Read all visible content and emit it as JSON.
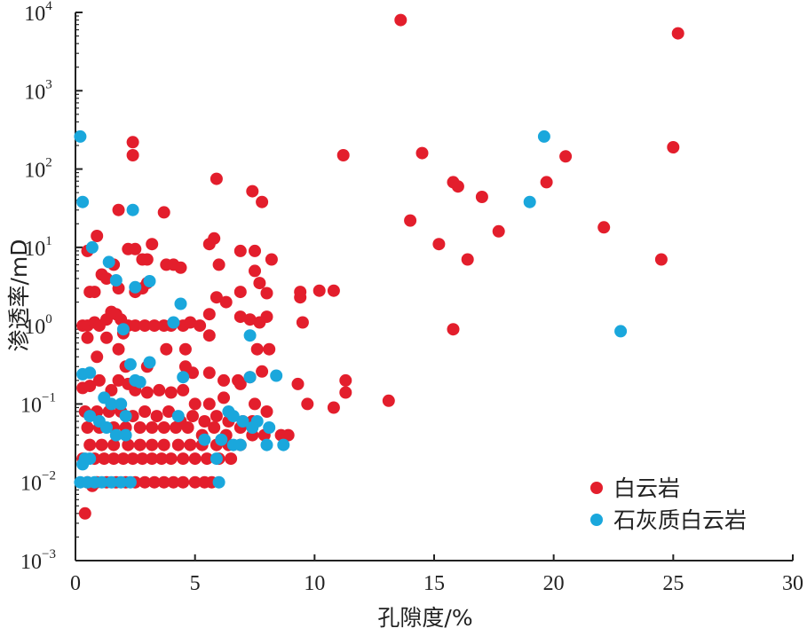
{
  "chart_data": {
    "type": "scatter",
    "title": "",
    "xlabel": "孔隙度/%",
    "ylabel": "渗透率/mD",
    "xlim": [
      0,
      30
    ],
    "ylim": [
      0.001,
      10000
    ],
    "y_scale": "log",
    "x_ticks": [
      "0",
      "5",
      "10",
      "15",
      "20",
      "25",
      "30"
    ],
    "y_ticks": [
      {
        "base": "10",
        "exp": "−3",
        "value": 0.001
      },
      {
        "base": "10",
        "exp": "−2",
        "value": 0.01
      },
      {
        "base": "10",
        "exp": "−1",
        "value": 0.1
      },
      {
        "base": "10",
        "exp": "0",
        "value": 1
      },
      {
        "base": "10",
        "exp": "1",
        "value": 10
      },
      {
        "base": "10",
        "exp": "2",
        "value": 100
      },
      {
        "base": "10",
        "exp": "3",
        "value": 1000
      },
      {
        "base": "10",
        "exp": "4",
        "value": 10000
      }
    ],
    "legend_position": "bottom-right",
    "grid": false,
    "series": [
      {
        "name": "白云岩",
        "color": "#e31e2c",
        "points": [
          [
            13.6,
            8000
          ],
          [
            25.2,
            5400
          ],
          [
            2.4,
            220
          ],
          [
            2.4,
            150
          ],
          [
            11.2,
            150
          ],
          [
            14.5,
            160
          ],
          [
            20.5,
            145
          ],
          [
            25.0,
            190
          ],
          [
            5.9,
            75
          ],
          [
            7.4,
            52
          ],
          [
            7.8,
            38
          ],
          [
            15.8,
            68
          ],
          [
            16.0,
            60
          ],
          [
            17.0,
            44
          ],
          [
            19.7,
            68
          ],
          [
            22.1,
            18
          ],
          [
            17.7,
            16
          ],
          [
            14.0,
            22
          ],
          [
            15.2,
            11
          ],
          [
            16.4,
            7
          ],
          [
            24.5,
            7
          ],
          [
            1.8,
            30
          ],
          [
            3.7,
            28
          ],
          [
            0.9,
            14
          ],
          [
            0.5,
            9
          ],
          [
            2.2,
            9.5
          ],
          [
            2.5,
            9.5
          ],
          [
            3.2,
            11
          ],
          [
            5.6,
            11
          ],
          [
            5.8,
            13
          ],
          [
            6.9,
            9
          ],
          [
            7.5,
            9
          ],
          [
            8.2,
            7
          ],
          [
            7.5,
            5
          ],
          [
            6.0,
            6
          ],
          [
            3.8,
            6
          ],
          [
            4.1,
            6
          ],
          [
            4.4,
            5.5
          ],
          [
            2.8,
            7
          ],
          [
            3.0,
            7
          ],
          [
            1.1,
            4.5
          ],
          [
            1.6,
            6
          ],
          [
            1.3,
            4
          ],
          [
            1.8,
            3
          ],
          [
            2.5,
            2.7
          ],
          [
            2.8,
            3
          ],
          [
            3.0,
            3.5
          ],
          [
            0.6,
            2.7
          ],
          [
            0.8,
            2.7
          ],
          [
            0.3,
            1
          ],
          [
            0.5,
            1
          ],
          [
            0.8,
            1.1
          ],
          [
            1.0,
            1
          ],
          [
            1.3,
            1.2
          ],
          [
            1.5,
            1.5
          ],
          [
            1.7,
            1.4
          ],
          [
            1.9,
            1.2
          ],
          [
            2.2,
            1
          ],
          [
            2.5,
            1
          ],
          [
            2.9,
            1
          ],
          [
            3.3,
            1
          ],
          [
            3.7,
            1
          ],
          [
            4.0,
            1
          ],
          [
            4.5,
            1
          ],
          [
            4.8,
            1.1
          ],
          [
            5.2,
            1
          ],
          [
            5.6,
            1.4
          ],
          [
            5.9,
            2.3
          ],
          [
            6.3,
            2
          ],
          [
            6.9,
            1.3
          ],
          [
            7.3,
            1.2
          ],
          [
            7.7,
            1.1
          ],
          [
            8.0,
            1.3
          ],
          [
            6.9,
            2.7
          ],
          [
            8.0,
            2.6
          ],
          [
            7.7,
            3.5
          ],
          [
            9.4,
            2.3
          ],
          [
            9.4,
            2.7
          ],
          [
            10.2,
            2.8
          ],
          [
            10.8,
            2.8
          ],
          [
            9.5,
            1.1
          ],
          [
            7.6,
            0.5
          ],
          [
            8.1,
            0.5
          ],
          [
            5.6,
            0.75
          ],
          [
            0.5,
            0.7
          ],
          [
            1.3,
            0.7
          ],
          [
            2.0,
            0.8
          ],
          [
            3.8,
            0.5
          ],
          [
            4.6,
            0.5
          ],
          [
            1.8,
            0.5
          ],
          [
            0.9,
            0.4
          ],
          [
            2.1,
            0.3
          ],
          [
            3.0,
            0.3
          ],
          [
            4.6,
            0.3
          ],
          [
            4.9,
            0.25
          ],
          [
            5.6,
            0.25
          ],
          [
            6.2,
            0.2
          ],
          [
            6.8,
            0.2
          ],
          [
            7.3,
            0.22
          ],
          [
            7.8,
            0.26
          ],
          [
            0.3,
            0.16
          ],
          [
            0.6,
            0.17
          ],
          [
            1.0,
            0.2
          ],
          [
            1.5,
            0.15
          ],
          [
            1.8,
            0.2
          ],
          [
            2.2,
            0.18
          ],
          [
            2.5,
            0.15
          ],
          [
            3.0,
            0.14
          ],
          [
            3.5,
            0.15
          ],
          [
            4.0,
            0.14
          ],
          [
            4.5,
            0.15
          ],
          [
            5.0,
            0.1
          ],
          [
            5.6,
            0.1
          ],
          [
            6.2,
            0.12
          ],
          [
            6.9,
            0.18
          ],
          [
            7.5,
            0.1
          ],
          [
            8.0,
            0.08
          ],
          [
            9.3,
            0.18
          ],
          [
            9.7,
            0.1
          ],
          [
            10.8,
            0.09
          ],
          [
            11.3,
            0.2
          ],
          [
            11.3,
            0.14
          ],
          [
            13.1,
            0.11
          ],
          [
            0.4,
            0.08
          ],
          [
            0.9,
            0.08
          ],
          [
            1.4,
            0.08
          ],
          [
            1.9,
            0.08
          ],
          [
            2.4,
            0.07
          ],
          [
            2.9,
            0.08
          ],
          [
            3.4,
            0.07
          ],
          [
            3.9,
            0.08
          ],
          [
            4.4,
            0.06
          ],
          [
            4.9,
            0.07
          ],
          [
            5.4,
            0.06
          ],
          [
            5.9,
            0.07
          ],
          [
            6.4,
            0.06
          ],
          [
            7.0,
            0.06
          ],
          [
            7.4,
            0.06
          ],
          [
            0.5,
            0.05
          ],
          [
            1.0,
            0.05
          ],
          [
            1.6,
            0.05
          ],
          [
            2.1,
            0.05
          ],
          [
            2.7,
            0.05
          ],
          [
            3.2,
            0.05
          ],
          [
            3.7,
            0.05
          ],
          [
            4.2,
            0.05
          ],
          [
            4.7,
            0.05
          ],
          [
            5.3,
            0.04
          ],
          [
            5.8,
            0.05
          ],
          [
            6.3,
            0.04
          ],
          [
            6.9,
            0.05
          ],
          [
            7.4,
            0.04
          ],
          [
            7.9,
            0.04
          ],
          [
            8.6,
            0.04
          ],
          [
            8.9,
            0.04
          ],
          [
            0.6,
            0.03
          ],
          [
            1.1,
            0.03
          ],
          [
            1.6,
            0.03
          ],
          [
            2.2,
            0.03
          ],
          [
            2.7,
            0.03
          ],
          [
            3.2,
            0.03
          ],
          [
            3.7,
            0.03
          ],
          [
            4.3,
            0.03
          ],
          [
            4.8,
            0.03
          ],
          [
            5.3,
            0.03
          ],
          [
            5.9,
            0.03
          ],
          [
            6.4,
            0.03
          ],
          [
            6.9,
            0.03
          ],
          [
            0.3,
            0.02
          ],
          [
            0.8,
            0.02
          ],
          [
            1.2,
            0.02
          ],
          [
            1.6,
            0.02
          ],
          [
            2.0,
            0.02
          ],
          [
            2.4,
            0.02
          ],
          [
            2.8,
            0.02
          ],
          [
            3.2,
            0.02
          ],
          [
            3.6,
            0.02
          ],
          [
            4.0,
            0.02
          ],
          [
            4.5,
            0.02
          ],
          [
            5.0,
            0.02
          ],
          [
            5.5,
            0.02
          ],
          [
            6.0,
            0.02
          ],
          [
            6.5,
            0.02
          ],
          [
            0.5,
            0.01
          ],
          [
            0.9,
            0.01
          ],
          [
            1.3,
            0.01
          ],
          [
            1.7,
            0.01
          ],
          [
            2.1,
            0.01
          ],
          [
            2.5,
            0.01
          ],
          [
            2.9,
            0.01
          ],
          [
            3.3,
            0.01
          ],
          [
            3.7,
            0.01
          ],
          [
            4.1,
            0.01
          ],
          [
            4.5,
            0.01
          ],
          [
            5.0,
            0.01
          ],
          [
            5.4,
            0.01
          ],
          [
            5.7,
            0.01
          ],
          [
            0.4,
            0.004
          ],
          [
            0.7,
            0.009
          ],
          [
            15.8,
            0.9
          ]
        ]
      },
      {
        "name": "石灰质白云岩",
        "color": "#1aa7dc",
        "points": [
          [
            0.2,
            260
          ],
          [
            19.6,
            260
          ],
          [
            0.3,
            38
          ],
          [
            2.4,
            30
          ],
          [
            19.0,
            38
          ],
          [
            0.7,
            10
          ],
          [
            1.4,
            6.5
          ],
          [
            1.7,
            3.8
          ],
          [
            2.5,
            3.1
          ],
          [
            3.1,
            3.7
          ],
          [
            4.4,
            1.9
          ],
          [
            4.1,
            1.1
          ],
          [
            7.3,
            0.75
          ],
          [
            22.8,
            0.85
          ],
          [
            2.0,
            0.9
          ],
          [
            2.3,
            0.32
          ],
          [
            3.1,
            0.34
          ],
          [
            0.3,
            0.24
          ],
          [
            0.6,
            0.25
          ],
          [
            2.5,
            0.2
          ],
          [
            2.7,
            0.19
          ],
          [
            4.5,
            0.22
          ],
          [
            7.3,
            0.22
          ],
          [
            8.4,
            0.23
          ],
          [
            1.2,
            0.12
          ],
          [
            1.5,
            0.1
          ],
          [
            1.9,
            0.1
          ],
          [
            0.6,
            0.07
          ],
          [
            1.0,
            0.06
          ],
          [
            1.3,
            0.05
          ],
          [
            2.1,
            0.07
          ],
          [
            4.3,
            0.07
          ],
          [
            6.4,
            0.08
          ],
          [
            6.6,
            0.07
          ],
          [
            7.0,
            0.06
          ],
          [
            7.6,
            0.06
          ],
          [
            1.7,
            0.04
          ],
          [
            2.1,
            0.04
          ],
          [
            5.4,
            0.035
          ],
          [
            6.1,
            0.035
          ],
          [
            6.6,
            0.03
          ],
          [
            6.9,
            0.03
          ],
          [
            7.4,
            0.05
          ],
          [
            8.1,
            0.05
          ],
          [
            8.0,
            0.03
          ],
          [
            8.7,
            0.03
          ],
          [
            0.4,
            0.02
          ],
          [
            0.6,
            0.02
          ],
          [
            5.9,
            0.02
          ],
          [
            0.3,
            0.017
          ],
          [
            0.2,
            0.01
          ],
          [
            0.5,
            0.01
          ],
          [
            0.8,
            0.01
          ],
          [
            1.1,
            0.01
          ],
          [
            1.5,
            0.01
          ],
          [
            1.9,
            0.01
          ],
          [
            2.3,
            0.01
          ],
          [
            6.0,
            0.01
          ]
        ]
      }
    ]
  }
}
